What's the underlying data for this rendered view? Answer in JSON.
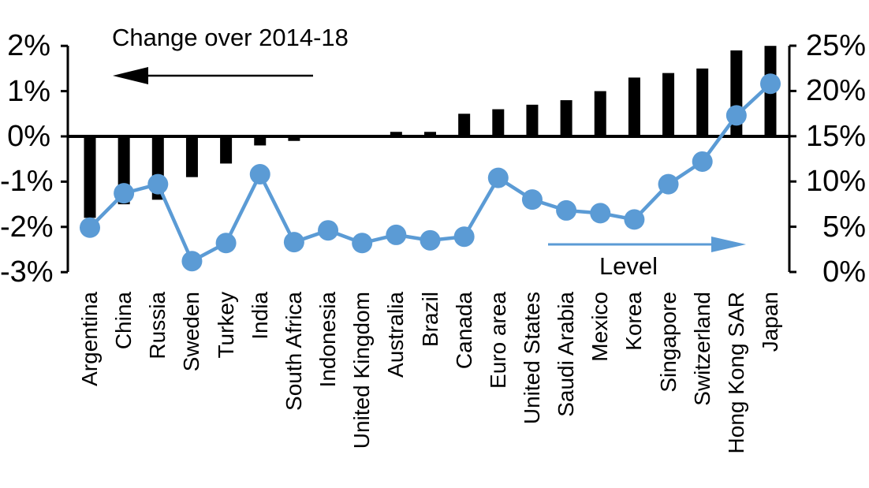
{
  "chart_data": {
    "type": "combo_bar_line",
    "categories": [
      "Argentina",
      "China",
      "Russia",
      "Sweden",
      "Turkey",
      "India",
      "South Africa",
      "Indonesia",
      "United Kingdom",
      "Australia",
      "Brazil",
      "Canada",
      "Euro area",
      "United States",
      "Saudi Arabia",
      "Mexico",
      "Korea",
      "Singapore",
      "Switzerland",
      "Hong Kong SAR",
      "Japan"
    ],
    "series": [
      {
        "name": "Change over 2014-18",
        "type": "bar",
        "axis": "left",
        "color": "#000000",
        "unit": "%",
        "values": [
          -1.8,
          -1.5,
          -1.4,
          -0.9,
          -0.6,
          -0.2,
          -0.1,
          0,
          0,
          0.1,
          0.1,
          0.5,
          0.6,
          0.7,
          0.8,
          1.0,
          1.3,
          1.4,
          1.5,
          1.9,
          2.0
        ]
      },
      {
        "name": "Level",
        "type": "line",
        "axis": "right",
        "color": "#5B9BD5",
        "unit": "%",
        "values": [
          4.9,
          8.7,
          9.7,
          1.2,
          3.2,
          10.8,
          3.3,
          4.6,
          3.2,
          4.1,
          3.5,
          3.9,
          10.4,
          8.0,
          6.8,
          6.5,
          5.8,
          9.7,
          12.2,
          17.3,
          20.8
        ]
      }
    ],
    "left_axis": {
      "min": -3,
      "max": 2,
      "step": 1,
      "tick_labels": [
        "2%",
        "1%",
        "0%",
        "-1%",
        "-2%",
        "-3%"
      ]
    },
    "right_axis": {
      "min": 0,
      "max": 25,
      "step": 5,
      "tick_labels": [
        "25%",
        "20%",
        "15%",
        "10%",
        "5%",
        "0%"
      ]
    },
    "grid": false,
    "legend_position": "in-plot annotations with arrows",
    "annotations": [
      {
        "text": "Change over 2014-18",
        "arrow_direction": "left",
        "text_color": "#000000",
        "arrow_color": "#000000"
      },
      {
        "text": "Level",
        "arrow_direction": "right",
        "text_color": "#000000",
        "arrow_color": "#5B9BD5"
      }
    ]
  }
}
